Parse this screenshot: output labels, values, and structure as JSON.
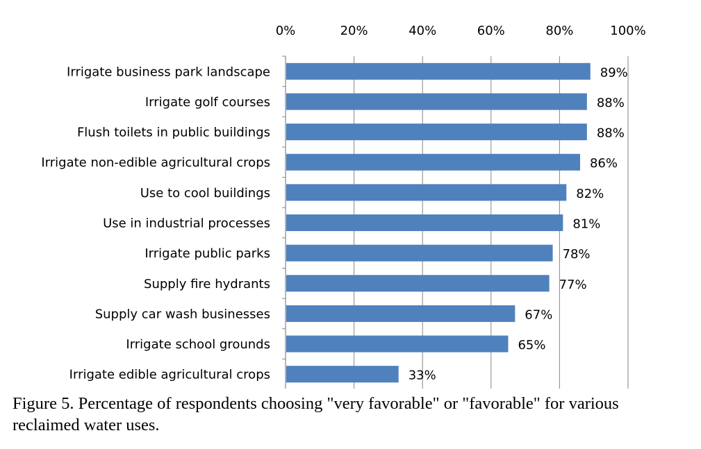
{
  "chart_data": {
    "type": "bar",
    "orientation": "horizontal",
    "title": "",
    "xlabel": "",
    "ylabel": "",
    "xlim": [
      0,
      100
    ],
    "x_axis_position": "top",
    "grid": true,
    "legend": "none",
    "bar_color": "#4f81bd",
    "tick_labels": [
      "0%",
      "20%",
      "40%",
      "60%",
      "80%",
      "100%"
    ],
    "categories": [
      "Irrigate business park landscape",
      "Irrigate golf courses",
      "Flush toilets in public buildings",
      "Irrigate non-edible agricultural crops",
      "Use to cool buildings",
      "Use in industrial processes",
      "Irrigate public parks",
      "Supply fire hydrants",
      "Supply car wash businesses",
      "Irrigate school grounds",
      "Irrigate edible agricultural crops"
    ],
    "values": [
      89,
      88,
      88,
      86,
      82,
      81,
      78,
      77,
      67,
      65,
      33
    ],
    "data_labels": [
      "89%",
      "88%",
      "88%",
      "86%",
      "82%",
      "81%",
      "78%",
      "77%",
      "67%",
      "65%",
      "33%"
    ]
  },
  "caption": "Figure 5. Percentage of respondents choosing \"very favorable\" or \"favorable\" for various reclaimed water uses."
}
